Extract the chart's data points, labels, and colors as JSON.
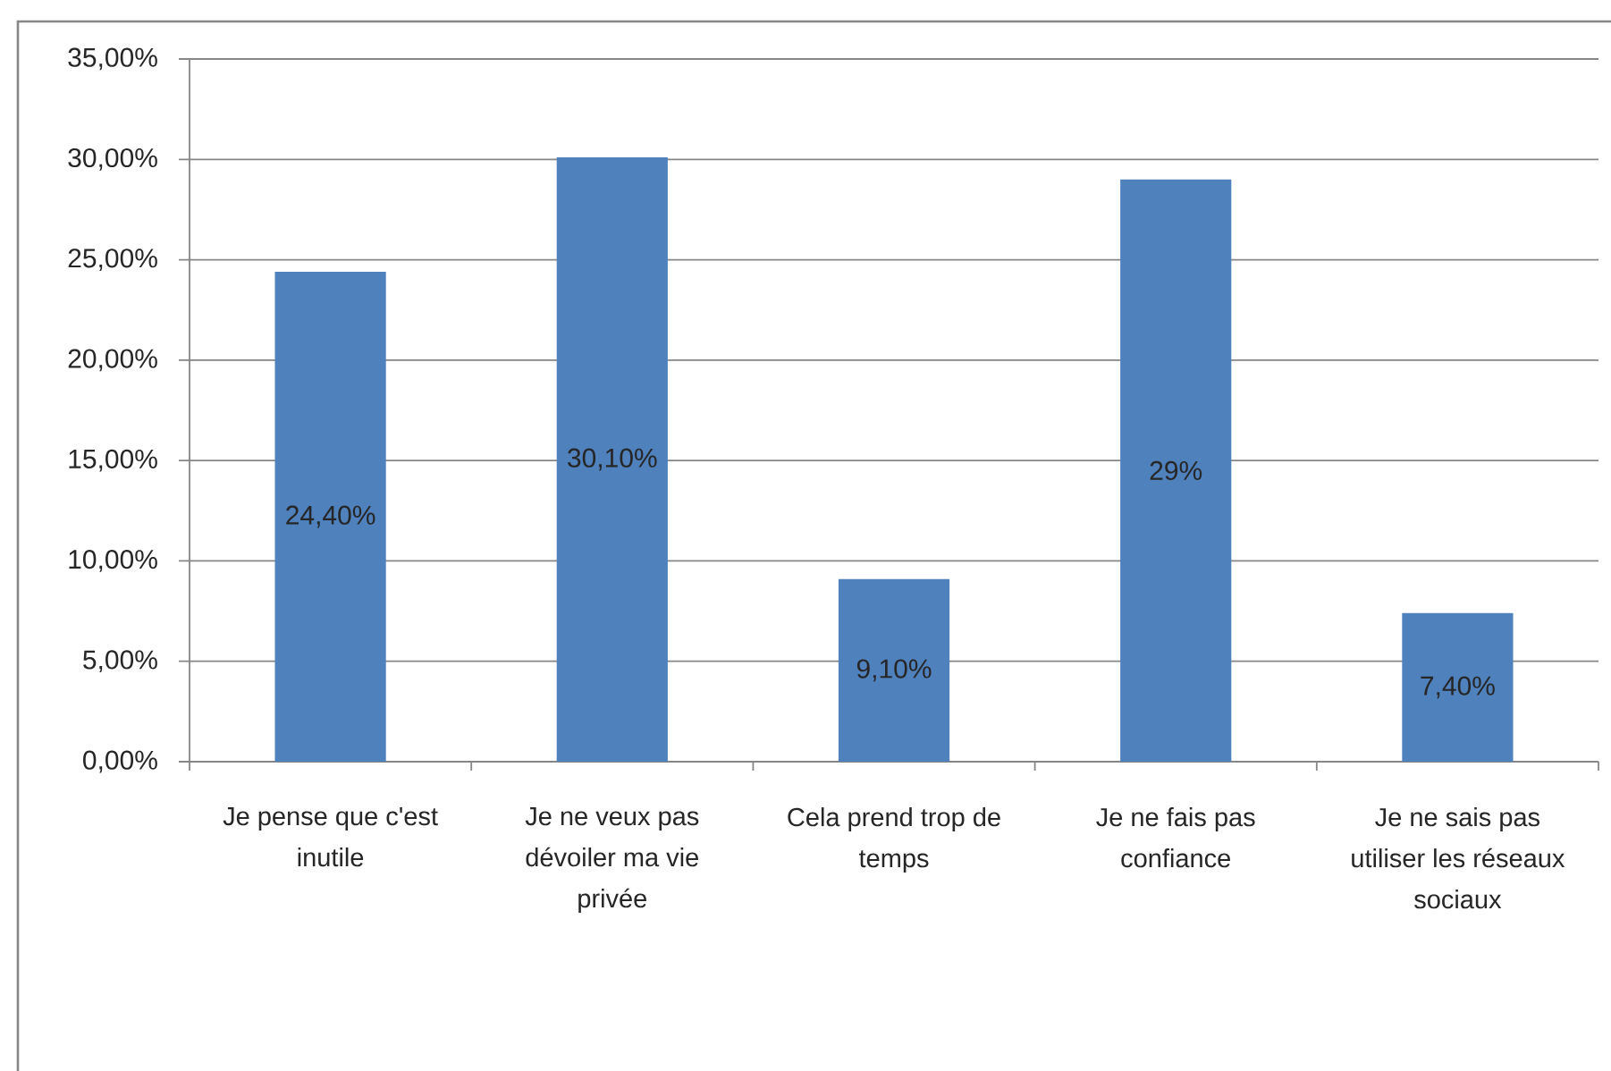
{
  "chart_data": {
    "type": "bar",
    "categories": [
      "Je pense que c'est inutile",
      "Je ne veux pas dévoiler ma vie privée",
      "Cela prend trop de temps",
      "Je ne fais pas confiance",
      "Je ne sais pas utiliser les réseaux sociaux"
    ],
    "values": [
      24.4,
      30.1,
      9.1,
      29,
      7.4
    ],
    "value_labels": [
      "24,40%",
      "30,10%",
      "9,10%",
      "29%",
      "7,40%"
    ],
    "color": "#4f81bd",
    "ylim": [
      0,
      35
    ],
    "yticks": [
      {
        "value": 0,
        "label": "0,00%"
      },
      {
        "value": 5,
        "label": "5,00%"
      },
      {
        "value": 10,
        "label": "10,00%"
      },
      {
        "value": 15,
        "label": "15,00%"
      },
      {
        "value": 20,
        "label": "20,00%"
      },
      {
        "value": 25,
        "label": "25,00%"
      },
      {
        "value": 30,
        "label": "30,00%"
      },
      {
        "value": 35,
        "label": "35,00%"
      }
    ],
    "grid": "y"
  }
}
